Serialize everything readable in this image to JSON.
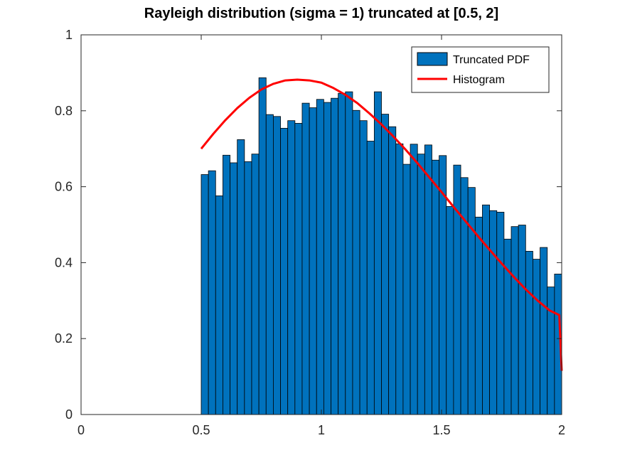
{
  "chart_data": {
    "type": "bar",
    "title": "Rayleigh distribution (sigma = 1) truncated at [0.5, 2]",
    "xlabel": "",
    "ylabel": "",
    "xlim": [
      0,
      2
    ],
    "ylim": [
      0,
      1
    ],
    "x_ticks": [
      "0",
      "0.5",
      "1",
      "1.5",
      "2"
    ],
    "y_ticks": [
      "0",
      "0.2",
      "0.4",
      "0.6",
      "0.8",
      "1"
    ],
    "grid": false,
    "legend_position": "top-right",
    "bins": {
      "start": 0.5,
      "end": 2,
      "width": 0.03,
      "values": [
        0.632,
        0.642,
        0.576,
        0.683,
        0.663,
        0.724,
        0.666,
        0.686,
        0.887,
        0.79,
        0.785,
        0.754,
        0.774,
        0.767,
        0.82,
        0.808,
        0.83,
        0.822,
        0.833,
        0.846,
        0.85,
        0.801,
        0.774,
        0.72,
        0.85,
        0.791,
        0.758,
        0.713,
        0.659,
        0.712,
        0.686,
        0.71,
        0.67,
        0.682,
        0.548,
        0.657,
        0.624,
        0.598,
        0.52,
        0.552,
        0.537,
        0.533,
        0.462,
        0.495,
        0.499,
        0.43,
        0.409,
        0.44,
        0.336,
        0.37
      ]
    },
    "series": [
      {
        "name": "Truncated PDF",
        "kind": "histogram",
        "color": "#0072BD",
        "edge_color": "#000000"
      },
      {
        "name": "Histogram",
        "kind": "line",
        "color": "#FF0000",
        "x": [
          0.5,
          0.55,
          0.6,
          0.65,
          0.7,
          0.75,
          0.8,
          0.85,
          0.9,
          0.95,
          1.0,
          1.05,
          1.1,
          1.15,
          1.2,
          1.25,
          1.3,
          1.35,
          1.4,
          1.45,
          1.5,
          1.55,
          1.6,
          1.65,
          1.7,
          1.75,
          1.8,
          1.85,
          1.9,
          1.95,
          1.99,
          2.0
        ],
        "y": [
          0.7,
          0.739,
          0.775,
          0.807,
          0.834,
          0.856,
          0.871,
          0.88,
          0.882,
          0.88,
          0.874,
          0.86,
          0.842,
          0.82,
          0.793,
          0.764,
          0.732,
          0.698,
          0.662,
          0.624,
          0.586,
          0.547,
          0.509,
          0.471,
          0.434,
          0.398,
          0.363,
          0.33,
          0.3,
          0.274,
          0.262,
          0.115
        ]
      }
    ]
  }
}
